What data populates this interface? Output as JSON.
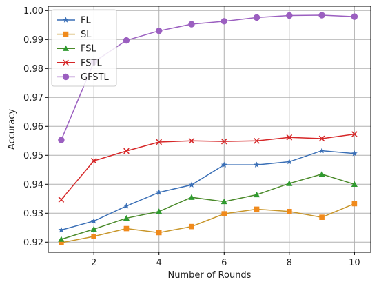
{
  "chart_data": {
    "type": "line",
    "xlabel": "Number of Rounds",
    "ylabel": "Accuracy",
    "x": [
      1,
      2,
      3,
      4,
      5,
      6,
      7,
      8,
      9,
      10
    ],
    "xlim": [
      0.6,
      10.5
    ],
    "ylim": [
      0.9165,
      1.0015
    ],
    "xticks": [
      2,
      4,
      6,
      8,
      10
    ],
    "xtick_labels": [
      "2",
      "4",
      "6",
      "8",
      "10"
    ],
    "yticks": [
      0.92,
      0.93,
      0.94,
      0.95,
      0.96,
      0.97,
      0.98,
      0.99,
      1.0
    ],
    "ytick_labels": [
      "0.92",
      "0.93",
      "0.94",
      "0.95",
      "0.96",
      "0.97",
      "0.98",
      "0.99",
      "1.00"
    ],
    "grid": true,
    "legend_position": "top-left",
    "series": [
      {
        "name": "FL",
        "color": "#3a6fb6",
        "marker": "star",
        "values": [
          0.9242,
          0.9273,
          0.9325,
          0.9372,
          0.9398,
          0.9467,
          0.9467,
          0.9478,
          0.9516,
          0.9506
        ]
      },
      {
        "name": "SL",
        "color": "#f08a1c",
        "line_color": "#c8962a",
        "marker": "square",
        "values": [
          0.9198,
          0.922,
          0.9247,
          0.9233,
          0.9254,
          0.9298,
          0.9314,
          0.9306,
          0.9286,
          0.9333
        ]
      },
      {
        "name": "FSL",
        "color": "#2f9a2f",
        "line_color": "#4a8a2a",
        "marker": "triangle",
        "values": [
          0.921,
          0.9245,
          0.9283,
          0.9306,
          0.9355,
          0.934,
          0.9364,
          0.9403,
          0.9435,
          0.94
        ]
      },
      {
        "name": "FSTL",
        "color": "#d62728",
        "marker": "x",
        "values": [
          0.9347,
          0.9481,
          0.9515,
          0.9546,
          0.955,
          0.9548,
          0.955,
          0.9562,
          0.9558,
          0.9573
        ]
      },
      {
        "name": "GFSTL",
        "color": "#9b5fc0",
        "marker": "circle",
        "values": [
          0.9553,
          0.9822,
          0.9897,
          0.993,
          0.9953,
          0.9963,
          0.9976,
          0.9983,
          0.9984,
          0.9979
        ]
      }
    ]
  }
}
